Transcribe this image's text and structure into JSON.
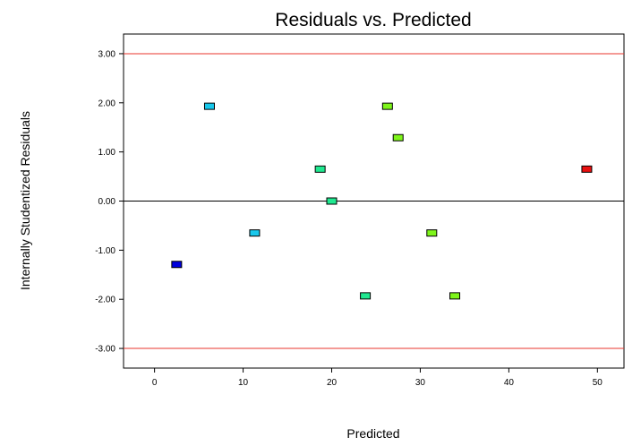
{
  "chart_data": {
    "type": "scatter",
    "title": "Residuals vs. Predicted",
    "xlabel": "Predicted",
    "ylabel": "Internally Studentized Residuals",
    "xlim": [
      -3.5,
      53
    ],
    "ylim": [
      -3.4,
      3.4
    ],
    "x_ticks": [
      0,
      10,
      20,
      30,
      40,
      50
    ],
    "x_tick_labels": [
      "0",
      "10",
      "20",
      "30",
      "40",
      "50"
    ],
    "y_ticks": [
      3,
      2,
      1,
      0,
      -1,
      -2,
      -3
    ],
    "y_tick_labels": [
      "3.00",
      "2.00",
      "1.00",
      "0.00",
      "-1.00",
      "-2.00",
      "-3.00"
    ],
    "reference_lines": [
      {
        "y": 3,
        "color": "#e8362c"
      },
      {
        "y": 0,
        "color": "#000000"
      },
      {
        "y": -3,
        "color": "#e8362c"
      }
    ],
    "grid": false,
    "points": [
      {
        "x": 2.5,
        "y": -1.29,
        "color": "#0000dd"
      },
      {
        "x": 6.2,
        "y": 1.93,
        "color": "#18c8ec"
      },
      {
        "x": 11.3,
        "y": -0.65,
        "color": "#18c8ec"
      },
      {
        "x": 18.7,
        "y": 0.65,
        "color": "#20e890"
      },
      {
        "x": 20.0,
        "y": 0.0,
        "color": "#20e890"
      },
      {
        "x": 23.8,
        "y": -1.93,
        "color": "#20e890"
      },
      {
        "x": 26.3,
        "y": 1.93,
        "color": "#7ef51a"
      },
      {
        "x": 27.5,
        "y": 1.29,
        "color": "#7ef51a"
      },
      {
        "x": 31.3,
        "y": -0.65,
        "color": "#7ef51a"
      },
      {
        "x": 33.9,
        "y": -1.93,
        "color": "#7ef51a"
      },
      {
        "x": 48.8,
        "y": 0.65,
        "color": "#e81010"
      }
    ]
  }
}
